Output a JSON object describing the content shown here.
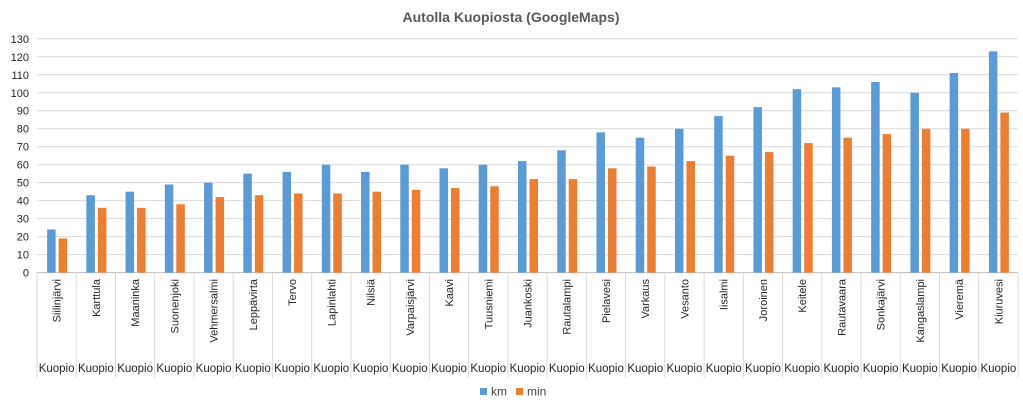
{
  "chart_data": {
    "type": "bar",
    "title": "Autolla Kuopiosta (GoogleMaps)",
    "xlabel": "",
    "ylabel": "",
    "ylim": [
      0,
      130
    ],
    "ytick_step": 10,
    "grid": true,
    "legend_position": "bottom",
    "categories": [
      "Siilinjärvi",
      "Karttula",
      "Maaninka",
      "Suonenjoki",
      "Vehmersalmi",
      "Leppävirta",
      "Tervo",
      "Lapinlahti",
      "Nilsiä",
      "Varpaisjärvi",
      "Kaavi",
      "Tuusniemi",
      "Juankoski",
      "Rautalampi",
      "Pielavesi",
      "Varkaus",
      "Vesanto",
      "Iisalmi",
      "Joroinen",
      "Keitele",
      "Rautavaara",
      "Sonkajärvi",
      "Kangaslampi",
      "Vieremä",
      "Kiuruvesi"
    ],
    "group_label": "Kuopio",
    "series": [
      {
        "name": "km",
        "color": "#5B9BD5",
        "values": [
          24,
          43,
          45,
          49,
          50,
          55,
          56,
          60,
          56,
          60,
          58,
          60,
          62,
          68,
          78,
          75,
          80,
          87,
          92,
          102,
          103,
          106,
          100,
          111,
          123
        ]
      },
      {
        "name": "min",
        "color": "#ED7D31",
        "values": [
          19,
          36,
          36,
          38,
          42,
          43,
          44,
          44,
          45,
          46,
          47,
          48,
          52,
          52,
          58,
          59,
          62,
          65,
          67,
          72,
          75,
          77,
          80,
          80,
          89
        ]
      }
    ]
  }
}
